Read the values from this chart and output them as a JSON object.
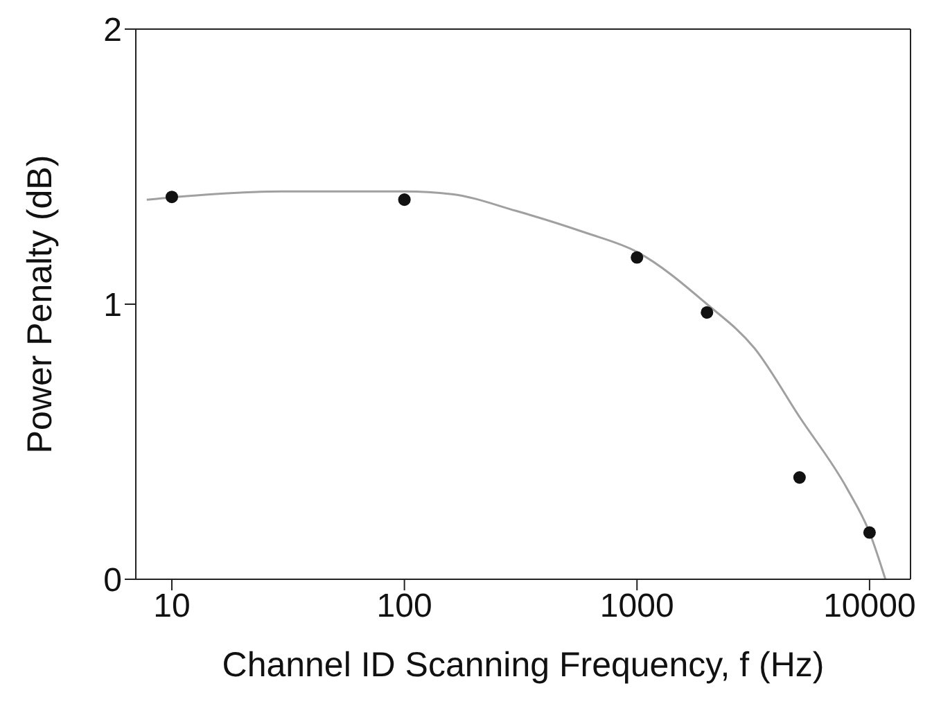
{
  "chart_data": {
    "type": "scatter",
    "xlabel": "Channel ID Scanning Frequency, f (Hz)",
    "ylabel": "Power Penalty (dB)",
    "log": "x",
    "xlim": [
      7,
      15000
    ],
    "xticks": [
      10,
      100,
      1000,
      10000
    ],
    "ylim": [
      0,
      2
    ],
    "yticks": [
      0,
      1,
      2
    ],
    "marker": "circle",
    "series": [
      {
        "color": "#111111",
        "x": [
          10,
          100,
          1000,
          2000,
          5000,
          10000
        ],
        "values": [
          1.39,
          1.38,
          1.17,
          0.97,
          0.37,
          0.17
        ]
      },
      {
        "type": "line",
        "color": "#a0a0a0",
        "line_style": "solid",
        "marker": "none",
        "x": [
          7.8,
          15,
          30,
          60,
          100,
          160,
          300,
          600,
          1000,
          2000,
          3200,
          5000,
          8000,
          10000,
          11700
        ],
        "values": [
          1.38,
          1.4,
          1.41,
          1.41,
          1.41,
          1.4,
          1.34,
          1.26,
          1.19,
          1.0,
          0.84,
          0.59,
          0.33,
          0.17,
          0
        ]
      }
    ]
  }
}
